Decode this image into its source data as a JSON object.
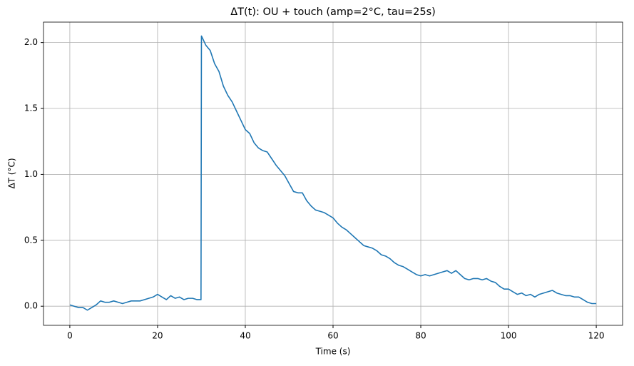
{
  "chart_data": {
    "type": "line",
    "title": "ΔT(t): OU + touch (amp=2°C, tau=25s)",
    "x_label": "Time (s)",
    "y_label": "ΔT (°C)",
    "xlim": [
      -6,
      126
    ],
    "ylim": [
      -0.145,
      2.155
    ],
    "xticks": [
      0,
      20,
      40,
      60,
      80,
      100,
      120
    ],
    "yticks": [
      {
        "value": 0,
        "label": "0.0"
      },
      0.5,
      {
        "value": 1,
        "label": "1.0"
      },
      1.5,
      {
        "value": 2,
        "label": "2.0"
      }
    ],
    "grid": true,
    "x": [
      0,
      1,
      2,
      3,
      4,
      5,
      6,
      7,
      8,
      9,
      10,
      11,
      12,
      13,
      14,
      15,
      16,
      17,
      18,
      19,
      20,
      21,
      22,
      23,
      24,
      25,
      26,
      27,
      28,
      29,
      29.9,
      30,
      31,
      32,
      33,
      34,
      35,
      36,
      37,
      38,
      39,
      40,
      41,
      42,
      43,
      44,
      45,
      46,
      47,
      48,
      49,
      50,
      51,
      52,
      53,
      54,
      55,
      56,
      57,
      58,
      59,
      60,
      61,
      62,
      63,
      64,
      65,
      66,
      67,
      68,
      69,
      70,
      71,
      72,
      73,
      74,
      75,
      76,
      77,
      78,
      79,
      80,
      81,
      82,
      83,
      84,
      85,
      86,
      87,
      88,
      89,
      90,
      91,
      92,
      93,
      94,
      95,
      96,
      97,
      98,
      99,
      100,
      101,
      102,
      103,
      104,
      105,
      106,
      107,
      108,
      109,
      110,
      111,
      112,
      113,
      114,
      115,
      116,
      117,
      118,
      119,
      120
    ],
    "series": [
      {
        "color": "#1f77b4",
        "values": [
          0.01,
          0.0,
          -0.01,
          -0.01,
          -0.03,
          -0.01,
          0.01,
          0.04,
          0.03,
          0.03,
          0.04,
          0.03,
          0.02,
          0.03,
          0.04,
          0.04,
          0.04,
          0.05,
          0.06,
          0.07,
          0.09,
          0.07,
          0.05,
          0.08,
          0.06,
          0.07,
          0.05,
          0.06,
          0.06,
          0.05,
          0.05,
          2.05,
          1.98,
          1.94,
          1.84,
          1.78,
          1.67,
          1.6,
          1.55,
          1.48,
          1.41,
          1.34,
          1.31,
          1.24,
          1.2,
          1.18,
          1.17,
          1.12,
          1.07,
          1.03,
          0.99,
          0.93,
          0.87,
          0.86,
          0.86,
          0.8,
          0.76,
          0.73,
          0.72,
          0.71,
          0.69,
          0.67,
          0.63,
          0.6,
          0.58,
          0.55,
          0.52,
          0.49,
          0.46,
          0.45,
          0.44,
          0.42,
          0.39,
          0.38,
          0.36,
          0.33,
          0.31,
          0.3,
          0.28,
          0.26,
          0.24,
          0.23,
          0.24,
          0.23,
          0.24,
          0.25,
          0.26,
          0.27,
          0.25,
          0.27,
          0.24,
          0.21,
          0.2,
          0.21,
          0.21,
          0.2,
          0.21,
          0.19,
          0.18,
          0.15,
          0.13,
          0.13,
          0.11,
          0.09,
          0.1,
          0.08,
          0.09,
          0.07,
          0.09,
          0.1,
          0.11,
          0.12,
          0.1,
          0.09,
          0.08,
          0.08,
          0.07,
          0.07,
          0.05,
          0.03,
          0.02,
          0.02
        ]
      }
    ]
  }
}
